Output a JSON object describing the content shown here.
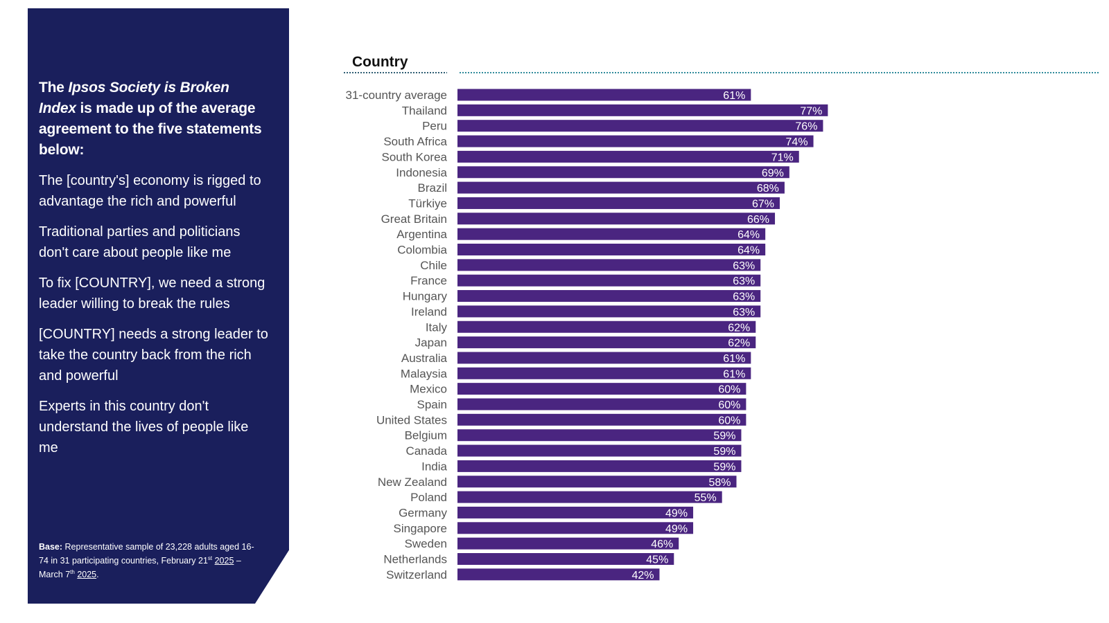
{
  "side_panel": {
    "intro_prefix": "The ",
    "intro_name": "Ipsos Society is Broken Index",
    "intro_suffix": " is made up of the average agreement to the five statements below:",
    "statements": [
      "The [country's] economy is rigged to advantage the rich and powerful",
      "Traditional parties and politicians don't care about people like me",
      "To fix [COUNTRY], we need a strong leader willing to break the rules",
      "[COUNTRY] needs a strong leader to take the country back from the rich and powerful",
      "Experts in this country don't understand the lives of people like me"
    ],
    "base": {
      "label": "Base:",
      "text": " Representative sample of 23,228 adults aged 16-74 in 31 participating countries, February 21",
      "sup1": "st",
      "year1": "2025",
      "dash": " – March 7",
      "sup2": "th",
      "year2": "2025",
      "end": "."
    }
  },
  "chart_data": {
    "type": "bar",
    "orientation": "horizontal",
    "title": "Country",
    "categories": [
      "31-country average",
      "Thailand",
      "Peru",
      "South Africa",
      "South Korea",
      "Indonesia",
      "Brazil",
      "Türkiye",
      "Great Britain",
      "Argentina",
      "Colombia",
      "Chile",
      "France",
      "Hungary",
      "Ireland",
      "Italy",
      "Japan",
      "Australia",
      "Malaysia",
      "Mexico",
      "Spain",
      "United States",
      "Belgium",
      "Canada",
      "India",
      "New Zealand",
      "Poland",
      "Germany",
      "Singapore",
      "Sweden",
      "Netherlands",
      "Switzerland"
    ],
    "values": [
      61,
      77,
      76,
      74,
      71,
      69,
      68,
      67,
      66,
      64,
      64,
      63,
      63,
      63,
      63,
      62,
      62,
      61,
      61,
      60,
      60,
      60,
      59,
      59,
      59,
      58,
      55,
      49,
      49,
      46,
      45,
      42
    ],
    "value_suffix": "%",
    "xlim": [
      0,
      100
    ],
    "bar_color": "#4a2580",
    "label_color": "#ffffff",
    "grid": false,
    "legend": "none"
  }
}
